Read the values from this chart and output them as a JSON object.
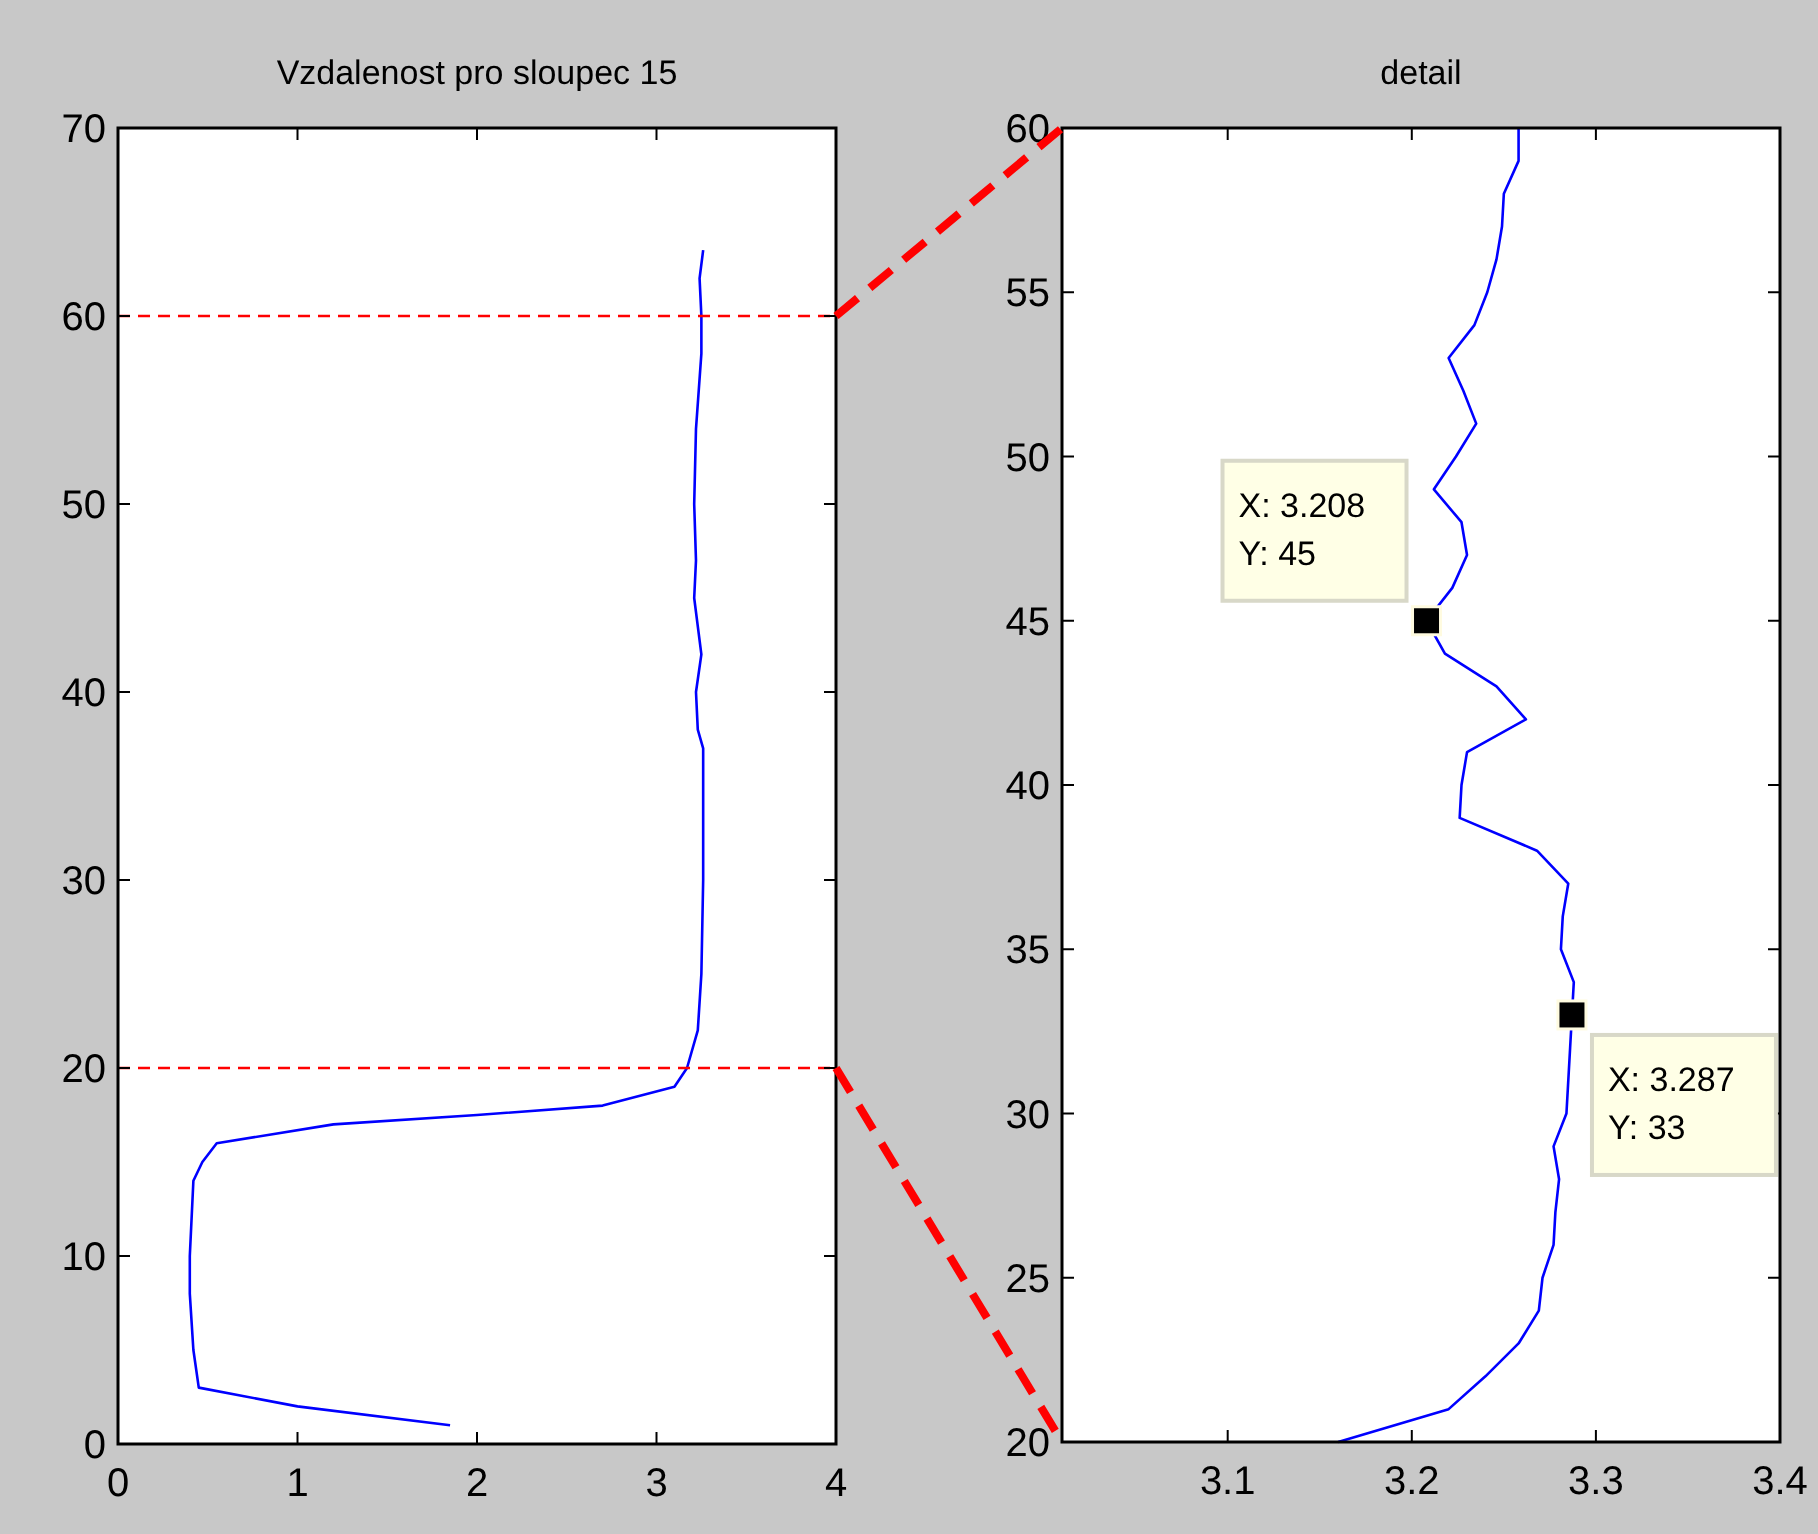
{
  "chart_data": [
    {
      "type": "line",
      "title": "Vzdalenost pro sloupec 15",
      "xlim": [
        0,
        4
      ],
      "xticks": [
        0,
        1,
        2,
        3,
        4
      ],
      "ylim": [
        0,
        70
      ],
      "yticks": [
        0,
        10,
        20,
        30,
        40,
        50,
        60,
        70
      ],
      "grid": false,
      "marker": "none",
      "line_style": "solid",
      "series": [
        {
          "color": "#0000ff",
          "x": [
            1.85,
            1.0,
            0.45,
            0.42,
            0.4,
            0.4,
            0.41,
            0.42,
            0.47,
            0.55,
            1.2,
            2.0,
            2.7,
            3.1,
            3.17,
            3.23,
            3.25,
            3.26,
            3.26,
            3.23,
            3.22,
            3.25,
            3.21,
            3.22,
            3.21,
            3.22,
            3.25,
            3.25,
            3.24,
            3.26
          ],
          "values": [
            1,
            2,
            3,
            5,
            8,
            10,
            12,
            14,
            15,
            16,
            17,
            17.5,
            18,
            19,
            20,
            22,
            25,
            30,
            37,
            38,
            40,
            42,
            45,
            47,
            50,
            54,
            58,
            60,
            62,
            63.5
          ]
        }
      ],
      "ref_lines": [
        {
          "axis": "y",
          "value": 60,
          "color": "#ff0000",
          "line_style": "dashed"
        },
        {
          "axis": "y",
          "value": 20,
          "color": "#ff0000",
          "line_style": "dashed"
        }
      ]
    },
    {
      "type": "line",
      "title": "detail",
      "xlim": [
        3.01,
        3.4
      ],
      "xticks": [
        3.1,
        3.2,
        3.3,
        3.4
      ],
      "ylim": [
        20,
        60
      ],
      "yticks": [
        20,
        25,
        30,
        35,
        40,
        45,
        50,
        55,
        60
      ],
      "grid": false,
      "marker": "none",
      "line_style": "solid",
      "series": [
        {
          "color": "#0000ff",
          "x": [
            3.16,
            3.22,
            3.24,
            3.258,
            3.269,
            3.271,
            3.277,
            3.278,
            3.28,
            3.277,
            3.284,
            3.285,
            3.286,
            3.287,
            3.288,
            3.281,
            3.282,
            3.285,
            3.268,
            3.226,
            3.227,
            3.23,
            3.262,
            3.246,
            3.218,
            3.208,
            3.222,
            3.23,
            3.227,
            3.212,
            3.224,
            3.235,
            3.228,
            3.22,
            3.234,
            3.241,
            3.246,
            3.249,
            3.25,
            3.258,
            3.258
          ],
          "values": [
            20,
            21,
            22,
            23,
            24,
            25,
            26,
            27,
            28,
            29,
            30,
            31,
            32,
            33,
            34,
            35,
            36,
            37,
            38,
            39,
            40,
            41,
            42,
            43,
            44,
            45,
            46,
            47,
            48,
            49,
            50,
            51,
            52,
            53,
            54,
            55,
            56,
            57,
            58,
            59,
            60
          ]
        },
        {
          "type": "scatter",
          "color": "#000000",
          "marker": "square",
          "x": [
            3.208,
            3.287
          ],
          "values": [
            45,
            33
          ]
        }
      ],
      "annotations": [
        {
          "text": "X: 3.208\nY: 45",
          "x": 3.208,
          "y": 45
        },
        {
          "text": "X: 3.287\nY: 33",
          "x": 3.287,
          "y": 33
        }
      ]
    }
  ]
}
